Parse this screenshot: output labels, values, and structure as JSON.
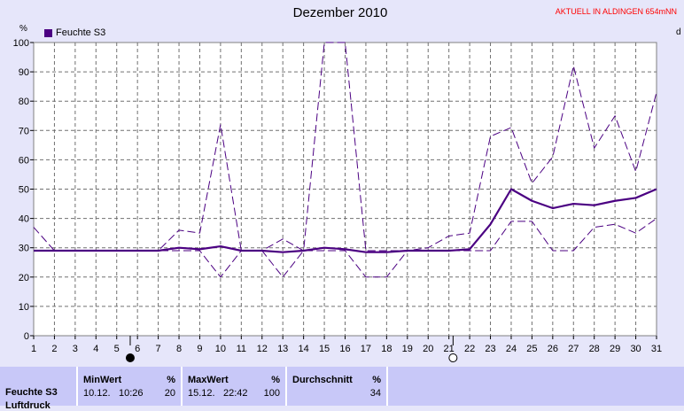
{
  "title": "Dezember 2010",
  "station": "AKTUELL IN ALDINGEN 654mNN",
  "unit_left": "%",
  "unit_right": "d",
  "legend": {
    "label": "Feuchte S3",
    "color": "#4b0082"
  },
  "chart_data": {
    "type": "line",
    "title": "Dezember 2010",
    "x": [
      1,
      2,
      3,
      4,
      5,
      6,
      7,
      8,
      9,
      10,
      11,
      12,
      13,
      14,
      15,
      16,
      17,
      18,
      19,
      20,
      21,
      22,
      23,
      24,
      25,
      26,
      27,
      28,
      29,
      30,
      31
    ],
    "xlim": [
      1,
      31
    ],
    "ylim": [
      0,
      100
    ],
    "yticks": [
      0,
      10,
      20,
      30,
      40,
      50,
      60,
      70,
      80,
      90,
      100
    ],
    "ylabel": "%",
    "grid": true,
    "legend_position": "top-left",
    "series": [
      {
        "name": "Feuchte S3",
        "style": "solid",
        "color": "#4b0082",
        "values": [
          29,
          29,
          29,
          29,
          29,
          29,
          29,
          30,
          29.5,
          30.5,
          29,
          29,
          28.5,
          29,
          30,
          29.5,
          28.5,
          28.5,
          29,
          29,
          29,
          29.5,
          38,
          50,
          46,
          43.5,
          45,
          44.5,
          46,
          47,
          50
        ]
      },
      {
        "style": "dashed",
        "color": "#4b0082",
        "values": [
          37,
          29,
          29,
          29,
          29,
          29,
          29,
          36,
          35,
          72,
          29,
          29,
          33,
          29,
          100,
          100,
          29,
          29,
          29,
          30,
          34,
          35,
          68,
          71,
          52,
          61,
          92,
          64,
          75,
          56,
          83
        ]
      },
      {
        "style": "dashed",
        "color": "#4b0082",
        "values": [
          29,
          29,
          29,
          29,
          29,
          29,
          29,
          29,
          29,
          20,
          29,
          29,
          20,
          29,
          29,
          29,
          20,
          20,
          29,
          29,
          29,
          29,
          29,
          39,
          39,
          29,
          29,
          37,
          38,
          35,
          40
        ]
      }
    ],
    "moon_markers": [
      {
        "day": 5.65,
        "phase": "full"
      },
      {
        "day": 21.2,
        "phase": "new"
      }
    ]
  },
  "stats": {
    "label": "Feuchte S3",
    "label_next": "Luftdruck",
    "min": {
      "header": "MinWert",
      "unit": "%",
      "date": "10.12.",
      "time": "10:26",
      "value": "20"
    },
    "max": {
      "header": "MaxWert",
      "unit": "%",
      "date": "15.12.",
      "time": "22:42",
      "value": "100"
    },
    "avg": {
      "header": "Durchschnitt",
      "unit": "%",
      "value": "34"
    }
  }
}
